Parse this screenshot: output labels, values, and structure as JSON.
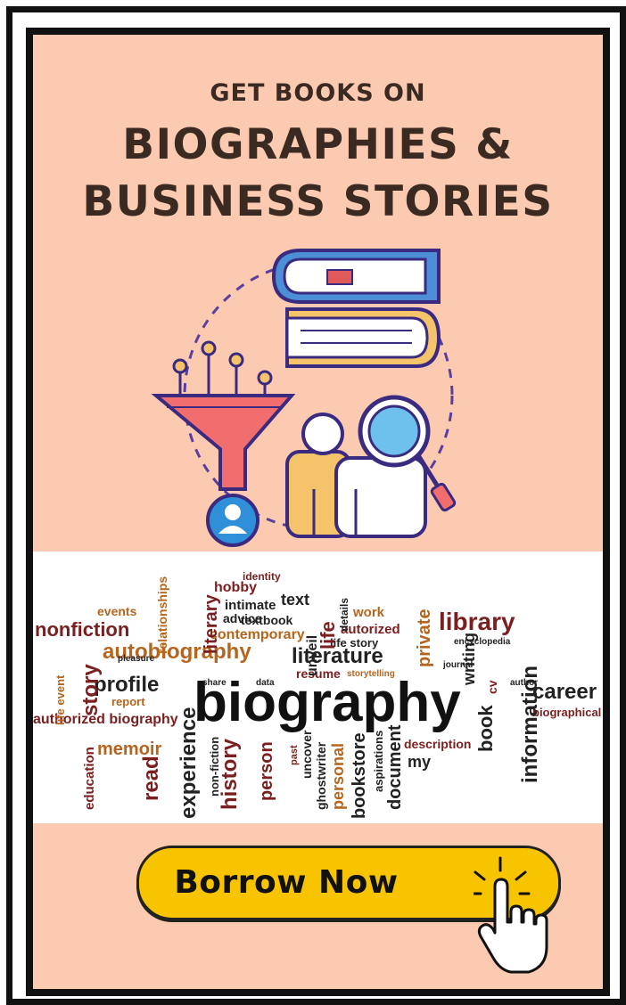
{
  "header": {
    "kicker": "GET BOOKS ON",
    "title_line1": "BIOGRAPHIES &",
    "title_line2": "BUSINESS STORIES"
  },
  "illustration": {
    "icons": [
      "books-stack-icon",
      "funnel-icon",
      "user-avatar-icon",
      "people-search-icon",
      "magnifier-icon"
    ]
  },
  "word_cloud": {
    "words": [
      "biography",
      "autobiography",
      "literature",
      "experience",
      "nonfiction",
      "library",
      "career",
      "biographical",
      "information",
      "profile",
      "story",
      "history",
      "memoir",
      "events",
      "relationships",
      "advice",
      "literary",
      "hobby",
      "identity",
      "intimate",
      "text",
      "textbook",
      "contemporary",
      "life",
      "details",
      "work",
      "autorized",
      "private",
      "encyclopedia",
      "life story",
      "unveil",
      "resume",
      "storytelling",
      "writing",
      "book",
      "cv",
      "authorized biography",
      "report",
      "life event",
      "education",
      "read",
      "non-fiction",
      "person",
      "past",
      "uncover",
      "ghostwriter",
      "personal",
      "bookstore",
      "aspirations",
      "document",
      "description",
      "my",
      "share",
      "pleasure",
      "data",
      "journal",
      "author"
    ]
  },
  "cta": {
    "label": "Borrow Now"
  },
  "colors": {
    "background": "#fccab0",
    "frame": "#111111",
    "heading": "#3b2a22",
    "button": "#f8c400",
    "funnel": "#f26d6d",
    "book_purple": "#5b3fa0",
    "accent_blue": "#2f8fd8"
  }
}
